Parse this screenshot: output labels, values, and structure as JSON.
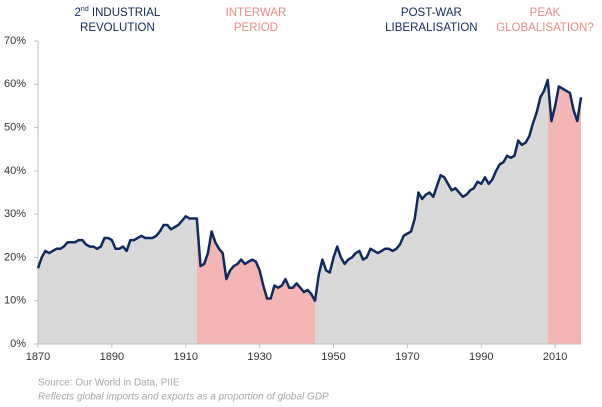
{
  "chart_data": {
    "type": "area",
    "x": [
      1870,
      1871,
      1872,
      1873,
      1874,
      1875,
      1876,
      1877,
      1878,
      1879,
      1880,
      1881,
      1882,
      1883,
      1884,
      1885,
      1886,
      1887,
      1888,
      1889,
      1890,
      1891,
      1892,
      1893,
      1894,
      1895,
      1896,
      1897,
      1898,
      1899,
      1900,
      1901,
      1902,
      1903,
      1904,
      1905,
      1906,
      1907,
      1908,
      1909,
      1910,
      1911,
      1912,
      1913,
      1914,
      1915,
      1916,
      1917,
      1918,
      1919,
      1920,
      1921,
      1922,
      1923,
      1924,
      1925,
      1926,
      1927,
      1928,
      1929,
      1930,
      1931,
      1932,
      1933,
      1934,
      1935,
      1936,
      1937,
      1938,
      1939,
      1940,
      1941,
      1942,
      1943,
      1944,
      1945,
      1946,
      1947,
      1948,
      1949,
      1950,
      1951,
      1952,
      1953,
      1954,
      1955,
      1956,
      1957,
      1958,
      1959,
      1960,
      1961,
      1962,
      1963,
      1964,
      1965,
      1966,
      1967,
      1968,
      1969,
      1970,
      1971,
      1972,
      1973,
      1974,
      1975,
      1976,
      1977,
      1978,
      1979,
      1980,
      1981,
      1982,
      1983,
      1984,
      1985,
      1986,
      1987,
      1988,
      1989,
      1990,
      1991,
      1992,
      1993,
      1994,
      1995,
      1996,
      1997,
      1998,
      1999,
      2000,
      2001,
      2002,
      2003,
      2004,
      2005,
      2006,
      2007,
      2008,
      2009,
      2010,
      2011,
      2012,
      2013,
      2014,
      2015,
      2016,
      2017
    ],
    "values": [
      17.5,
      20,
      21.5,
      21,
      21.5,
      22,
      22,
      22.5,
      23.5,
      23.5,
      23.5,
      24,
      24,
      23,
      22.5,
      22.5,
      22,
      22.5,
      24.5,
      24.5,
      24,
      22,
      22,
      22.5,
      21.5,
      24,
      24,
      24.5,
      25,
      24.5,
      24.5,
      24.5,
      25,
      26,
      27.5,
      27.5,
      26.5,
      27,
      27.5,
      28.5,
      29.5,
      29,
      29,
      29,
      18,
      18.5,
      21,
      26,
      23.5,
      22,
      21,
      15,
      17,
      18,
      18.5,
      19.5,
      18.5,
      19,
      19.5,
      19,
      17,
      13.5,
      10.5,
      10.5,
      13.5,
      13,
      13.5,
      15,
      13,
      13,
      14,
      13,
      12,
      12.5,
      11.5,
      10,
      16,
      19.5,
      17,
      16.5,
      20,
      22.5,
      20,
      18.5,
      19.5,
      20,
      21,
      21.5,
      19.5,
      20,
      22,
      21.5,
      21,
      21.5,
      22,
      22,
      21.5,
      22,
      23,
      25,
      25.5,
      26,
      29,
      35,
      33.5,
      34.5,
      35,
      34,
      36.5,
      39,
      38.5,
      37,
      35.5,
      36,
      35,
      34,
      34.5,
      35.5,
      36,
      37.5,
      37,
      38.5,
      37,
      38,
      40,
      41.5,
      42,
      43.5,
      43,
      43.5,
      47,
      46,
      46.5,
      48,
      51,
      53.5,
      57,
      58.5,
      61,
      51.5,
      55,
      59.5,
      59,
      58.5,
      58,
      54,
      51.5,
      57
    ],
    "line_color": "#0f2a5f",
    "xlim": [
      1870,
      2017
    ],
    "ylim": [
      0,
      70
    ],
    "xticks": [
      1870,
      1890,
      1910,
      1930,
      1950,
      1970,
      1990,
      2010
    ],
    "yticks": [
      {
        "value": 0,
        "label": "0%"
      },
      {
        "value": 10,
        "label": "10%"
      },
      {
        "value": 20,
        "label": "20%"
      },
      {
        "value": 30,
        "label": "30%"
      },
      {
        "value": 40,
        "label": "40%"
      },
      {
        "value": 50,
        "label": "50%"
      },
      {
        "value": 60,
        "label": "60%"
      },
      {
        "value": 70,
        "label": "70%"
      }
    ],
    "periods": [
      {
        "start": 1870,
        "end": 1913,
        "color": "#d9d9d9",
        "label_color": "#0f2a5f",
        "label": [
          [
            {
              "text": "2"
            },
            {
              "text": "nd",
              "sup": true
            },
            {
              "text": " INDUSTRIAL"
            }
          ],
          [
            {
              "text": "REVOLUTION"
            }
          ]
        ]
      },
      {
        "start": 1913,
        "end": 1945,
        "color": "#f4b5b5",
        "label_color": "#e98a82",
        "label": [
          [
            {
              "text": "INTERWAR"
            }
          ],
          [
            {
              "text": "PERIOD"
            }
          ]
        ]
      },
      {
        "start": 1945,
        "end": 2008,
        "color": "#d9d9d9",
        "label_color": "#0f2a5f",
        "label": [
          [
            {
              "text": "POST-WAR"
            }
          ],
          [
            {
              "text": "LIBERALISATION"
            }
          ]
        ]
      },
      {
        "start": 2008,
        "end": 2017,
        "color": "#f4b5b5",
        "label_color": "#e98a82",
        "label": [
          [
            {
              "text": "PEAK"
            }
          ],
          [
            {
              "text": "GLOBALISATION?"
            }
          ]
        ]
      }
    ],
    "source": "Source: Our World in Data, PIIE",
    "note": "Reflects global imports and exports as a proportion of global GDP"
  }
}
